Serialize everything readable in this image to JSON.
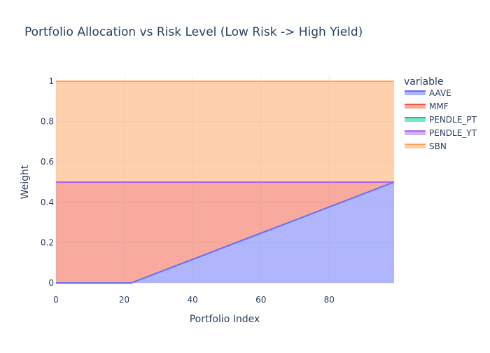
{
  "chart_data": {
    "type": "area",
    "stacked": true,
    "title": "Portfolio Allocation vs Risk Level (Low Risk -> High Yield)",
    "xlabel": "Portfolio Index",
    "ylabel": "Weight",
    "xlim": [
      0,
      99
    ],
    "ylim": [
      0,
      1
    ],
    "xticks": [
      0,
      20,
      40,
      60,
      80
    ],
    "yticks": [
      0,
      0.2,
      0.4,
      0.6,
      0.8,
      1
    ],
    "ytick_labels": [
      "0",
      "0.2",
      "0.4",
      "0.6",
      "0.8",
      "1"
    ],
    "grid": true,
    "legend_title": "variable",
    "legend_position": "right",
    "x": [
      0,
      22,
      99
    ],
    "series": [
      {
        "name": "AAVE",
        "color": "#636efa",
        "values": [
          0,
          0,
          0.5
        ]
      },
      {
        "name": "MMF",
        "color": "#EF553B",
        "values": [
          0.5,
          0.5,
          0
        ]
      },
      {
        "name": "PENDLE_PT",
        "color": "#00cc96",
        "values": [
          0,
          0,
          0
        ]
      },
      {
        "name": "PENDLE_YT",
        "color": "#ab63fa",
        "values": [
          0,
          0,
          0
        ]
      },
      {
        "name": "SBN",
        "color": "#FFA15A",
        "values": [
          0.5,
          0.5,
          0.5
        ]
      }
    ]
  }
}
